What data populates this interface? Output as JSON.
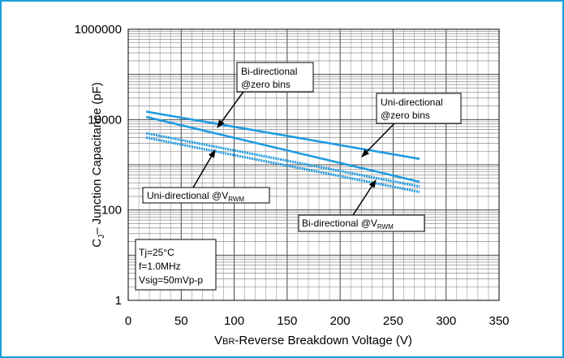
{
  "chart_data": {
    "type": "line",
    "title": "",
    "xlabel": {
      "main": "V",
      "sub": "BR",
      "rest": "-Reverse Breakdown Voltage (V)"
    },
    "ylabel": {
      "main": "C",
      "sub": "J",
      "rest": "– Junction Capacitance (pF)"
    },
    "x_ticks": [
      "0",
      "50",
      "100",
      "150",
      "200",
      "250",
      "300",
      "350"
    ],
    "y_ticks": [
      "1",
      "100",
      "10000",
      "1000000"
    ],
    "xlim": [
      0,
      350
    ],
    "ylim": [
      1,
      1000000
    ],
    "y_scale": "log",
    "grid": true,
    "series": [
      {
        "name": "Bi-directional @zero bins",
        "style": "solid",
        "color": "#1e9be0",
        "x": [
          17,
          275
        ],
        "y": [
          15000,
          1350
        ]
      },
      {
        "name": "Uni-directional @zero bins",
        "style": "solid",
        "color": "#1e9be0",
        "x": [
          17,
          275
        ],
        "y": [
          11500,
          420
        ]
      },
      {
        "name": "Uni-directional @VRWM",
        "style": "dotted",
        "color": "#1e9be0",
        "x": [
          17,
          275
        ],
        "y": [
          5000,
          330
        ]
      },
      {
        "name": "Bi-directional @VRWM",
        "style": "dotted",
        "color": "#1e9be0",
        "x": [
          17,
          275
        ],
        "y": [
          4000,
          250
        ]
      }
    ],
    "annotations": [
      {
        "lines": [
          "Bi-directional",
          "@zero bins"
        ]
      },
      {
        "lines": [
          "Uni-directional",
          "@zero bins"
        ]
      },
      {
        "text": "Uni-directional @V",
        "sub": "RWM"
      },
      {
        "text": "Bi-directional @V",
        "sub": "RWM"
      }
    ],
    "conditions": [
      "Tj=25°C",
      "f=1.0MHz",
      "Vsig=50mVp-p"
    ]
  },
  "colors": {
    "frame": "#1aa0dc",
    "series": "#1e9be0",
    "grid": "#777777"
  }
}
